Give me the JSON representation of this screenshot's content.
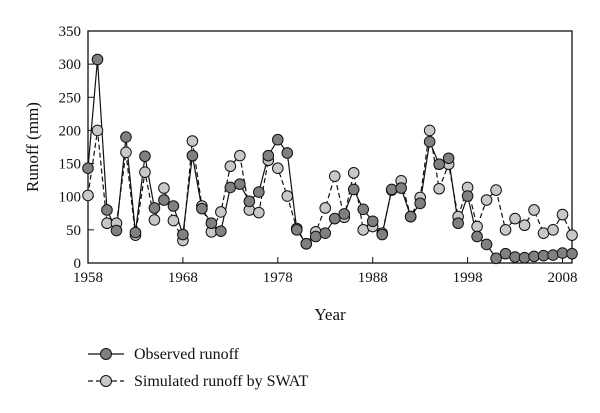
{
  "chart_data": {
    "type": "line",
    "title": "",
    "xlabel": "Year",
    "ylabel": "Runoff (mm)",
    "xlim": [
      1958,
      2009
    ],
    "ylim": [
      0,
      350
    ],
    "x_ticks": [
      1958,
      1968,
      1978,
      1988,
      1998,
      2008
    ],
    "y_ticks": [
      0,
      50,
      100,
      150,
      200,
      250,
      300,
      350
    ],
    "grid": false,
    "legend_position": "bottom-left",
    "x": [
      1958,
      1959,
      1960,
      1961,
      1962,
      1963,
      1964,
      1965,
      1966,
      1967,
      1968,
      1969,
      1970,
      1971,
      1972,
      1973,
      1974,
      1975,
      1976,
      1977,
      1978,
      1979,
      1980,
      1981,
      1982,
      1983,
      1984,
      1985,
      1986,
      1987,
      1988,
      1989,
      1990,
      1991,
      1992,
      1993,
      1994,
      1995,
      1996,
      1997,
      1998,
      1999,
      2000,
      2001,
      2002,
      2003,
      2004,
      2005,
      2006,
      2007,
      2008,
      2009
    ],
    "series": [
      {
        "name": "Observed runoff",
        "style": "solid",
        "color": "#808080",
        "values": [
          143,
          307,
          80,
          49,
          190,
          46,
          161,
          83,
          95,
          86,
          43,
          162,
          82,
          60,
          48,
          114,
          119,
          93,
          107,
          162,
          186,
          166,
          50,
          29,
          40,
          45,
          67,
          74,
          111,
          81,
          63,
          43,
          111,
          113,
          70,
          90,
          183,
          149,
          158,
          60,
          101,
          40,
          28,
          7,
          14,
          9,
          8,
          10,
          11,
          12,
          15,
          14
        ]
      },
      {
        "name": "Simulated runoff by SWAT",
        "style": "dashed",
        "color": "#c8c8c8",
        "values": [
          102,
          200,
          60,
          60,
          167,
          42,
          137,
          65,
          113,
          64,
          34,
          184,
          86,
          47,
          77,
          146,
          162,
          80,
          76,
          155,
          143,
          101,
          52,
          29,
          47,
          83,
          131,
          69,
          136,
          50,
          55,
          45,
          110,
          124,
          70,
          99,
          200,
          112,
          149,
          70,
          114,
          55,
          95,
          110,
          50,
          67,
          57,
          80,
          45,
          50,
          73,
          42
        ]
      }
    ]
  }
}
